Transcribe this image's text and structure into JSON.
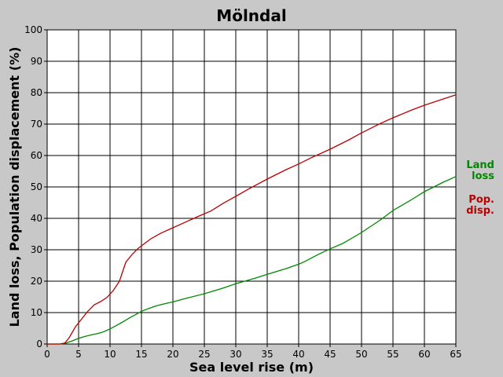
{
  "chart_data": {
    "type": "line",
    "title": "Mölndal",
    "xlabel": "Sea level rise (m)",
    "ylabel": "Land loss, Population displacement (%)",
    "xlim": [
      0,
      65
    ],
    "ylim": [
      0,
      100
    ],
    "x_ticks": [
      0,
      5,
      10,
      15,
      20,
      25,
      30,
      35,
      40,
      45,
      50,
      55,
      60,
      65
    ],
    "y_ticks": [
      0,
      10,
      20,
      30,
      40,
      50,
      60,
      70,
      80,
      90,
      100
    ],
    "grid": true,
    "legend_position": "right",
    "series": [
      {
        "name_lines": [
          "Land",
          "loss"
        ],
        "color": "#008800",
        "points": [
          [
            0,
            0
          ],
          [
            2,
            0
          ],
          [
            3,
            0.3
          ],
          [
            4,
            1
          ],
          [
            5,
            1.8
          ],
          [
            6,
            2.4
          ],
          [
            7,
            2.9
          ],
          [
            8,
            3.3
          ],
          [
            9,
            3.9
          ],
          [
            10,
            4.8
          ],
          [
            11,
            5.9
          ],
          [
            12,
            7
          ],
          [
            13,
            8.2
          ],
          [
            14,
            9.3
          ],
          [
            15,
            10.4
          ],
          [
            16,
            11.2
          ],
          [
            17,
            11.9
          ],
          [
            18,
            12.5
          ],
          [
            20,
            13.4
          ],
          [
            22,
            14.5
          ],
          [
            25,
            16
          ],
          [
            28,
            17.8
          ],
          [
            30,
            19.2
          ],
          [
            33,
            20.9
          ],
          [
            35,
            22.2
          ],
          [
            38,
            24
          ],
          [
            40,
            25.4
          ],
          [
            41,
            26.3
          ],
          [
            43,
            28.4
          ],
          [
            45,
            30.3
          ],
          [
            47,
            32
          ],
          [
            50,
            35.5
          ],
          [
            53,
            39.5
          ],
          [
            55,
            42.5
          ],
          [
            58,
            46
          ],
          [
            60,
            48.5
          ],
          [
            63,
            51.5
          ],
          [
            65,
            53.3
          ]
        ]
      },
      {
        "name_lines": [
          "Pop.",
          "disp."
        ],
        "color": "#bb0000",
        "points": [
          [
            0,
            0
          ],
          [
            2,
            0
          ],
          [
            2.8,
            0.3
          ],
          [
            3.5,
            2
          ],
          [
            4.5,
            5.5
          ],
          [
            5.5,
            8
          ],
          [
            6.5,
            10.5
          ],
          [
            7.5,
            12.5
          ],
          [
            8.5,
            13.5
          ],
          [
            9.5,
            14.8
          ],
          [
            10.5,
            17
          ],
          [
            11.5,
            20
          ],
          [
            12,
            23
          ],
          [
            12.5,
            26
          ],
          [
            13.5,
            28.5
          ],
          [
            14.5,
            30.5
          ],
          [
            15.5,
            32
          ],
          [
            16.5,
            33.5
          ],
          [
            18,
            35.2
          ],
          [
            20,
            37
          ],
          [
            22,
            38.8
          ],
          [
            24,
            40.6
          ],
          [
            26,
            42.3
          ],
          [
            28,
            44.8
          ],
          [
            30,
            47
          ],
          [
            32,
            49.3
          ],
          [
            35,
            52.5
          ],
          [
            38,
            55.5
          ],
          [
            40,
            57.3
          ],
          [
            42,
            59.3
          ],
          [
            45,
            62
          ],
          [
            48,
            65
          ],
          [
            50,
            67.2
          ],
          [
            53,
            70.2
          ],
          [
            55,
            72
          ],
          [
            58,
            74.5
          ],
          [
            60,
            76
          ],
          [
            63,
            78
          ],
          [
            65,
            79.3
          ]
        ]
      }
    ]
  }
}
